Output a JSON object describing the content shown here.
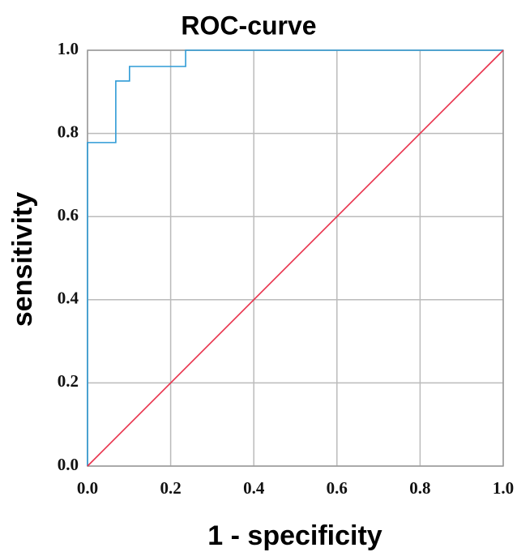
{
  "chart_data": {
    "type": "line",
    "title": "ROC-curve",
    "xlabel": "1 - specificity",
    "ylabel": "sensitivity",
    "xlim": [
      0,
      1
    ],
    "ylim": [
      0,
      1
    ],
    "xticks": [
      {
        "value": 0,
        "label": "0.0"
      },
      0.2,
      0.4,
      0.6,
      0.8,
      {
        "value": 1,
        "label": "1.0"
      }
    ],
    "yticks": [
      {
        "value": 0,
        "label": "0.0"
      },
      0.2,
      0.4,
      0.6,
      0.8,
      {
        "value": 1,
        "label": "1.0"
      }
    ],
    "grid": true,
    "series": [
      {
        "color": "#2e9bd6",
        "x": [
          0,
          0,
          0.068,
          0.068,
          0.101,
          0.101,
          0.236,
          0.236,
          1
        ],
        "values": [
          0,
          0.778,
          0.778,
          0.926,
          0.926,
          0.961,
          0.961,
          1,
          1
        ]
      },
      {
        "color": "#e8304a",
        "x": [
          0,
          1
        ],
        "values": [
          0,
          1
        ]
      }
    ]
  }
}
